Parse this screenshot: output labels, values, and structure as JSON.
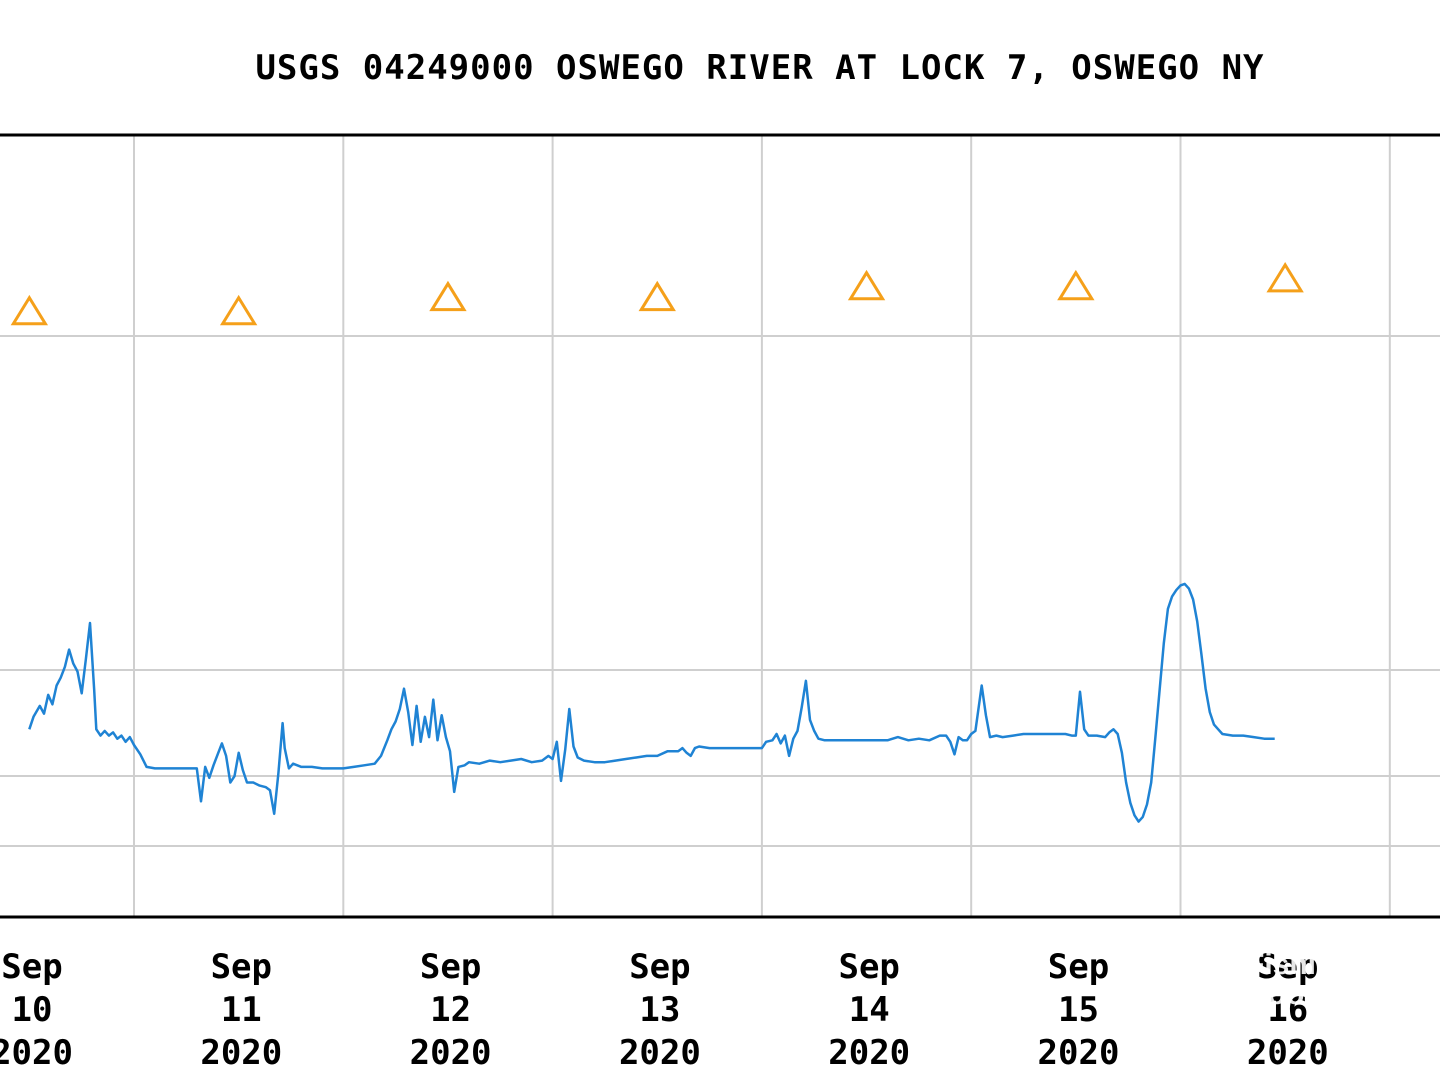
{
  "chart_data": {
    "type": "line",
    "title": "USGS 04249000 OSWEGO RIVER AT LOCK 7, OSWEGO NY",
    "xlabel": "",
    "ylabel": "",
    "grid": true,
    "x_ticks": [
      {
        "month": "Sep",
        "day": "10",
        "year": "2020",
        "date": "2020-09-10"
      },
      {
        "month": "Sep",
        "day": "11",
        "year": "2020",
        "date": "2020-09-11"
      },
      {
        "month": "Sep",
        "day": "12",
        "year": "2020",
        "date": "2020-09-12"
      },
      {
        "month": "Sep",
        "day": "13",
        "year": "2020",
        "date": "2020-09-13"
      },
      {
        "month": "Sep",
        "day": "14",
        "year": "2020",
        "date": "2020-09-14"
      },
      {
        "month": "Sep",
        "day": "15",
        "year": "2020",
        "date": "2020-09-15"
      },
      {
        "month": "Sep",
        "day": "16",
        "year": "2020",
        "date": "2020-09-16"
      }
    ],
    "series": [
      {
        "color": "#1f83d4",
        "points": [
          [
            -0.5,
            22.0
          ],
          [
            -0.48,
            22.8
          ],
          [
            -0.45,
            23.5
          ],
          [
            -0.43,
            23.0
          ],
          [
            -0.41,
            24.2
          ],
          [
            -0.39,
            23.6
          ],
          [
            -0.37,
            24.8
          ],
          [
            -0.35,
            25.3
          ],
          [
            -0.33,
            26.0
          ],
          [
            -0.31,
            27.1
          ],
          [
            -0.29,
            26.2
          ],
          [
            -0.27,
            25.7
          ],
          [
            -0.25,
            24.3
          ],
          [
            -0.23,
            26.5
          ],
          [
            -0.21,
            28.8
          ],
          [
            -0.19,
            24.5
          ],
          [
            -0.18,
            22.0
          ],
          [
            -0.16,
            21.6
          ],
          [
            -0.14,
            21.9
          ],
          [
            -0.12,
            21.6
          ],
          [
            -0.1,
            21.8
          ],
          [
            -0.08,
            21.4
          ],
          [
            -0.06,
            21.6
          ],
          [
            -0.04,
            21.2
          ],
          [
            -0.02,
            21.5
          ],
          [
            0.0,
            21.0
          ],
          [
            0.03,
            20.4
          ],
          [
            0.06,
            19.6
          ],
          [
            0.1,
            19.5
          ],
          [
            0.15,
            19.5
          ],
          [
            0.2,
            19.5
          ],
          [
            0.25,
            19.5
          ],
          [
            0.3,
            19.5
          ],
          [
            0.32,
            17.4
          ],
          [
            0.34,
            19.6
          ],
          [
            0.36,
            18.9
          ],
          [
            0.38,
            19.7
          ],
          [
            0.4,
            20.4
          ],
          [
            0.42,
            21.1
          ],
          [
            0.44,
            20.3
          ],
          [
            0.46,
            18.6
          ],
          [
            0.48,
            19.0
          ],
          [
            0.5,
            20.5
          ],
          [
            0.52,
            19.4
          ],
          [
            0.54,
            18.6
          ],
          [
            0.57,
            18.6
          ],
          [
            0.6,
            18.4
          ],
          [
            0.63,
            18.3
          ],
          [
            0.65,
            18.1
          ],
          [
            0.67,
            16.6
          ],
          [
            0.69,
            19.2
          ],
          [
            0.71,
            22.4
          ],
          [
            0.72,
            20.8
          ],
          [
            0.74,
            19.5
          ],
          [
            0.76,
            19.8
          ],
          [
            0.8,
            19.6
          ],
          [
            0.85,
            19.6
          ],
          [
            0.9,
            19.5
          ],
          [
            0.95,
            19.5
          ],
          [
            1.0,
            19.5
          ],
          [
            1.05,
            19.6
          ],
          [
            1.1,
            19.7
          ],
          [
            1.15,
            19.8
          ],
          [
            1.18,
            20.3
          ],
          [
            1.21,
            21.3
          ],
          [
            1.23,
            22.0
          ],
          [
            1.25,
            22.5
          ],
          [
            1.27,
            23.3
          ],
          [
            1.29,
            24.6
          ],
          [
            1.31,
            23.1
          ],
          [
            1.33,
            21.0
          ],
          [
            1.35,
            23.5
          ],
          [
            1.37,
            21.2
          ],
          [
            1.39,
            22.8
          ],
          [
            1.41,
            21.5
          ],
          [
            1.43,
            23.9
          ],
          [
            1.45,
            21.3
          ],
          [
            1.47,
            22.9
          ],
          [
            1.49,
            21.5
          ],
          [
            1.51,
            20.6
          ],
          [
            1.53,
            18.0
          ],
          [
            1.55,
            19.6
          ],
          [
            1.58,
            19.7
          ],
          [
            1.6,
            19.9
          ],
          [
            1.65,
            19.8
          ],
          [
            1.7,
            20.0
          ],
          [
            1.75,
            19.9
          ],
          [
            1.8,
            20.0
          ],
          [
            1.85,
            20.1
          ],
          [
            1.9,
            19.9
          ],
          [
            1.95,
            20.0
          ],
          [
            1.98,
            20.3
          ],
          [
            2.0,
            20.1
          ],
          [
            2.02,
            21.2
          ],
          [
            2.04,
            18.7
          ],
          [
            2.06,
            20.7
          ],
          [
            2.08,
            23.3
          ],
          [
            2.1,
            20.9
          ],
          [
            2.12,
            20.2
          ],
          [
            2.15,
            20.0
          ],
          [
            2.2,
            19.9
          ],
          [
            2.25,
            19.9
          ],
          [
            2.3,
            20.0
          ],
          [
            2.35,
            20.1
          ],
          [
            2.4,
            20.2
          ],
          [
            2.45,
            20.3
          ],
          [
            2.5,
            20.3
          ],
          [
            2.55,
            20.6
          ],
          [
            2.6,
            20.6
          ],
          [
            2.62,
            20.8
          ],
          [
            2.64,
            20.5
          ],
          [
            2.66,
            20.3
          ],
          [
            2.68,
            20.8
          ],
          [
            2.7,
            20.9
          ],
          [
            2.75,
            20.8
          ],
          [
            2.8,
            20.8
          ],
          [
            2.85,
            20.8
          ],
          [
            2.9,
            20.8
          ],
          [
            2.95,
            20.8
          ],
          [
            3.0,
            20.8
          ],
          [
            3.02,
            21.2
          ],
          [
            3.05,
            21.3
          ],
          [
            3.07,
            21.7
          ],
          [
            3.09,
            21.1
          ],
          [
            3.11,
            21.6
          ],
          [
            3.13,
            20.3
          ],
          [
            3.15,
            21.4
          ],
          [
            3.17,
            21.9
          ],
          [
            3.19,
            23.4
          ],
          [
            3.21,
            25.1
          ],
          [
            3.23,
            22.6
          ],
          [
            3.25,
            21.9
          ],
          [
            3.27,
            21.4
          ],
          [
            3.3,
            21.3
          ],
          [
            3.35,
            21.3
          ],
          [
            3.4,
            21.3
          ],
          [
            3.45,
            21.3
          ],
          [
            3.5,
            21.3
          ],
          [
            3.55,
            21.3
          ],
          [
            3.6,
            21.3
          ],
          [
            3.65,
            21.5
          ],
          [
            3.7,
            21.3
          ],
          [
            3.75,
            21.4
          ],
          [
            3.8,
            21.3
          ],
          [
            3.85,
            21.6
          ],
          [
            3.88,
            21.6
          ],
          [
            3.9,
            21.2
          ],
          [
            3.92,
            20.4
          ],
          [
            3.94,
            21.5
          ],
          [
            3.96,
            21.3
          ],
          [
            3.98,
            21.3
          ],
          [
            4.0,
            21.7
          ],
          [
            4.02,
            21.9
          ],
          [
            4.05,
            24.8
          ],
          [
            4.07,
            22.9
          ],
          [
            4.09,
            21.5
          ],
          [
            4.12,
            21.6
          ],
          [
            4.15,
            21.5
          ],
          [
            4.2,
            21.6
          ],
          [
            4.25,
            21.7
          ],
          [
            4.3,
            21.7
          ],
          [
            4.35,
            21.7
          ],
          [
            4.4,
            21.7
          ],
          [
            4.45,
            21.7
          ],
          [
            4.48,
            21.6
          ],
          [
            4.5,
            21.6
          ],
          [
            4.52,
            24.4
          ],
          [
            4.54,
            22.0
          ],
          [
            4.56,
            21.6
          ],
          [
            4.6,
            21.6
          ],
          [
            4.64,
            21.5
          ],
          [
            4.66,
            21.8
          ],
          [
            4.68,
            22.0
          ],
          [
            4.7,
            21.7
          ],
          [
            4.72,
            20.5
          ],
          [
            4.74,
            18.6
          ],
          [
            4.76,
            17.3
          ],
          [
            4.78,
            16.5
          ],
          [
            4.8,
            16.1
          ],
          [
            4.82,
            16.4
          ],
          [
            4.84,
            17.2
          ],
          [
            4.86,
            18.6
          ],
          [
            4.88,
            21.5
          ],
          [
            4.9,
            24.5
          ],
          [
            4.92,
            27.5
          ],
          [
            4.94,
            29.7
          ],
          [
            4.96,
            30.5
          ],
          [
            4.98,
            30.9
          ],
          [
            5.0,
            31.2
          ],
          [
            5.02,
            31.3
          ],
          [
            5.04,
            31.0
          ],
          [
            5.06,
            30.3
          ],
          [
            5.08,
            28.9
          ],
          [
            5.1,
            26.8
          ],
          [
            5.12,
            24.6
          ],
          [
            5.14,
            23.1
          ],
          [
            5.16,
            22.3
          ],
          [
            5.18,
            22.0
          ],
          [
            5.2,
            21.7
          ],
          [
            5.25,
            21.6
          ],
          [
            5.3,
            21.6
          ],
          [
            5.35,
            21.5
          ],
          [
            5.4,
            21.4
          ],
          [
            5.45,
            21.4
          ]
        ]
      },
      {
        "name": "",
        "color": "#f5a01a",
        "marker": "triangle",
        "points": [
          [
            -0.5,
            48.7
          ],
          [
            0.5,
            48.7
          ],
          [
            1.5,
            49.6
          ],
          [
            2.5,
            49.6
          ],
          [
            3.5,
            50.3
          ],
          [
            4.5,
            50.3
          ],
          [
            5.5,
            50.8
          ]
        ]
      }
    ]
  },
  "watermark": {
    "brand": "Fishing Booker",
    "line1": "Fishing",
    "line2": "Booker"
  }
}
